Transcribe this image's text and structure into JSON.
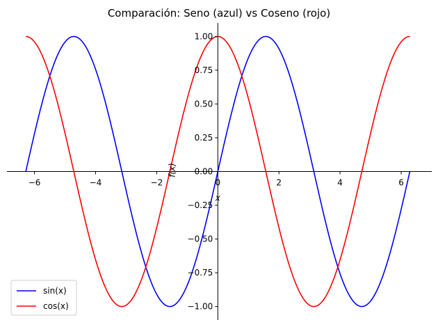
{
  "chart_data": {
    "type": "line",
    "title": "Comparación: Seno (azul) vs Coseno (rojo)",
    "xlabel": "x",
    "ylabel": "f(x)",
    "xlim": [
      -6.9,
      7.0
    ],
    "ylim": [
      -1.1,
      1.1
    ],
    "xticks": [
      -6,
      -4,
      -2,
      0,
      2,
      4,
      6
    ],
    "yticks": [
      -1.0,
      -0.75,
      -0.5,
      -0.25,
      0.0,
      0.25,
      0.5,
      0.75,
      1.0
    ],
    "xtick_labels": [
      "−6",
      "−4",
      "−2",
      "0",
      "2",
      "4",
      "6"
    ],
    "ytick_labels": [
      "−1.00",
      "−0.75",
      "−0.50",
      "−0.25",
      "0.00",
      "0.25",
      "0.50",
      "0.75",
      "1.00"
    ],
    "x_range": [
      -6.283,
      6.283
    ],
    "grid": false,
    "legend_position": "lower-left",
    "series": [
      {
        "name": "sin(x)",
        "function": "sin",
        "color": "#0000ff"
      },
      {
        "name": "cos(x)",
        "function": "cos",
        "color": "#ff0000"
      }
    ]
  }
}
